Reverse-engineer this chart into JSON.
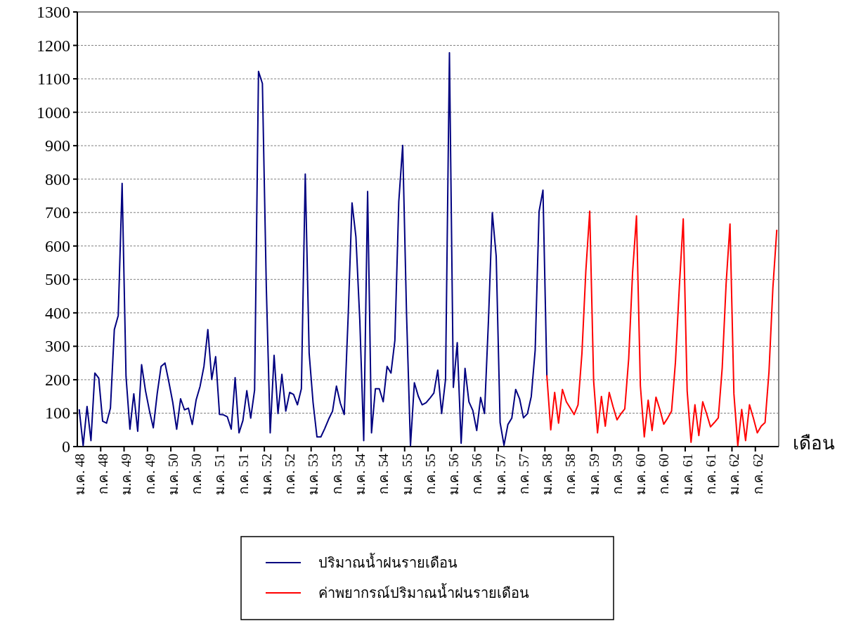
{
  "chart_data": {
    "type": "line",
    "xlabel": "เดือน",
    "categories": [
      "ม.ค. 48",
      null,
      null,
      null,
      null,
      null,
      "ก.ค. 48",
      null,
      null,
      null,
      null,
      null,
      "ม.ค. 49",
      null,
      null,
      null,
      null,
      null,
      "ก.ค. 49",
      null,
      null,
      null,
      null,
      null,
      "ม.ค. 50",
      null,
      null,
      null,
      null,
      null,
      "ก.ค. 50",
      null,
      null,
      null,
      null,
      null,
      "ม.ค. 51",
      null,
      null,
      null,
      null,
      null,
      "ก.ค. 51",
      null,
      null,
      null,
      null,
      null,
      "ม.ค. 52",
      null,
      null,
      null,
      null,
      null,
      "ก.ค. 52",
      null,
      null,
      null,
      null,
      null,
      "ม.ค. 53",
      null,
      null,
      null,
      null,
      null,
      "ก.ค. 53",
      null,
      null,
      null,
      null,
      null,
      "ม.ค. 54",
      null,
      null,
      null,
      null,
      null,
      "ก.ค. 54",
      null,
      null,
      null,
      null,
      null,
      "ม.ค. 55",
      null,
      null,
      null,
      null,
      null,
      "ก.ค. 55",
      null,
      null,
      null,
      null,
      null,
      "ม.ค. 56",
      null,
      null,
      null,
      null,
      null,
      "ก.ค. 56",
      null,
      null,
      null,
      null,
      null,
      "ม.ค. 57",
      null,
      null,
      null,
      null,
      null,
      "ก.ค. 57",
      null,
      null,
      null,
      null,
      null,
      "ม.ค. 58",
      null,
      null,
      null,
      null,
      null,
      "ก.ค. 58",
      null,
      null,
      null,
      null,
      null,
      "ม.ค. 59",
      null,
      null,
      null,
      null,
      null,
      "ก.ค. 59",
      null,
      null,
      null,
      null,
      null,
      "ม.ค. 60",
      null,
      null,
      null,
      null,
      null,
      "ก.ค. 60",
      null,
      null,
      null,
      null,
      null,
      "ม.ค. 61",
      null,
      null,
      null,
      null,
      null,
      "ก.ค. 61",
      null,
      null,
      null,
      null,
      null,
      "ม.ค. 62",
      null,
      null,
      null,
      null,
      null,
      "ก.ค. 62",
      null,
      null,
      null,
      null,
      null
    ],
    "series": [
      {
        "name": "ปริมาณน้ำฝนรายเดือน",
        "color": "#000080",
        "values": [
          110,
          3,
          120,
          18,
          220,
          205,
          76,
          70,
          115,
          350,
          392,
          787,
          210,
          52,
          158,
          46,
          245,
          167,
          108,
          56,
          158,
          240,
          250,
          193,
          132,
          52,
          143,
          110,
          115,
          66,
          140,
          180,
          240,
          350,
          201,
          269,
          96,
          95,
          89,
          52,
          206,
          41,
          78,
          167,
          85,
          169,
          1122,
          1086,
          478,
          41,
          273,
          99,
          216,
          106,
          162,
          156,
          125,
          173,
          815,
          279,
          132,
          29,
          29,
          54,
          82,
          106,
          181,
          130,
          96,
          387,
          729,
          627,
          376,
          18,
          763,
          41,
          173,
          173,
          134,
          240,
          220,
          318,
          733,
          901,
          392,
          3,
          191,
          151,
          125,
          131,
          145,
          160,
          229,
          99,
          201,
          1178,
          177,
          311,
          10,
          234,
          134,
          108,
          48,
          147,
          99,
          374,
          700,
          569,
          72,
          4,
          66,
          85,
          171,
          143,
          86,
          98,
          150,
          288,
          703,
          767,
          212,
          null,
          null,
          null,
          null,
          null,
          null,
          null,
          null,
          null,
          null,
          null,
          null,
          null,
          null,
          null,
          null,
          null,
          null,
          null,
          null,
          null,
          null,
          null,
          null,
          null,
          null,
          null,
          null,
          null,
          null,
          null,
          null,
          null,
          null,
          null,
          null,
          null,
          null,
          null,
          null,
          null,
          null,
          null,
          null,
          null,
          null,
          null,
          null,
          null,
          null,
          null,
          null,
          null,
          null,
          null,
          null,
          null,
          null,
          null
        ]
      },
      {
        "name": "ค่าพยากรณ์ปริมาณน้ำฝนรายเดือน",
        "color": "#ff0000",
        "values": [
          null,
          null,
          null,
          null,
          null,
          null,
          null,
          null,
          null,
          null,
          null,
          null,
          null,
          null,
          null,
          null,
          null,
          null,
          null,
          null,
          null,
          null,
          null,
          null,
          null,
          null,
          null,
          null,
          null,
          null,
          null,
          null,
          null,
          null,
          null,
          null,
          null,
          null,
          null,
          null,
          null,
          null,
          null,
          null,
          null,
          null,
          null,
          null,
          null,
          null,
          null,
          null,
          null,
          null,
          null,
          null,
          null,
          null,
          null,
          null,
          null,
          null,
          null,
          null,
          null,
          null,
          null,
          null,
          null,
          null,
          null,
          null,
          null,
          null,
          null,
          null,
          null,
          null,
          null,
          null,
          null,
          null,
          null,
          null,
          null,
          null,
          null,
          null,
          null,
          null,
          null,
          null,
          null,
          null,
          null,
          null,
          null,
          null,
          null,
          null,
          null,
          null,
          null,
          null,
          null,
          null,
          null,
          null,
          null,
          null,
          null,
          null,
          null,
          null,
          null,
          null,
          null,
          null,
          null,
          null,
          212,
          50,
          162,
          70,
          171,
          134,
          115,
          96,
          125,
          279,
          525,
          704,
          197,
          41,
          150,
          61,
          162,
          119,
          80,
          98,
          113,
          263,
          521,
          690,
          182,
          29,
          139,
          48,
          148,
          111,
          67,
          85,
          106,
          253,
          478,
          681,
          167,
          13,
          125,
          33,
          134,
          98,
          59,
          72,
          86,
          236,
          487,
          666,
          158,
          3,
          111,
          18,
          125,
          85,
          41,
          61,
          72,
          223,
          474,
          647
        ]
      }
    ],
    "ylim": [
      0,
      1300
    ],
    "yticks": [
      0,
      100,
      200,
      300,
      400,
      500,
      600,
      700,
      800,
      900,
      1000,
      1100,
      1200,
      1300
    ],
    "grid": "y",
    "legend": "bottom"
  }
}
